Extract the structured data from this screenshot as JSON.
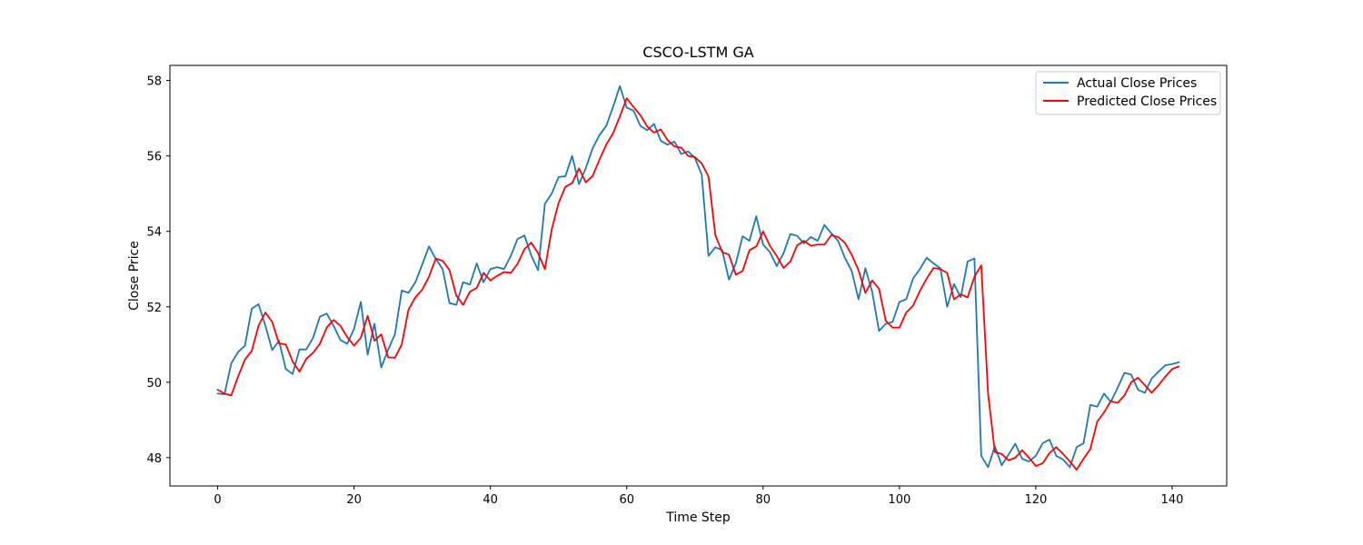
{
  "chart_data": {
    "type": "line",
    "title": "CSCO-LSTM GA",
    "xlabel": "Time Step",
    "ylabel": "Close Price",
    "xlim": [
      -7,
      148
    ],
    "ylim": [
      47.25,
      58.4
    ],
    "xticks": [
      0,
      20,
      40,
      60,
      80,
      100,
      120,
      140
    ],
    "yticks": [
      48,
      50,
      52,
      54,
      56,
      58
    ],
    "grid": false,
    "legend_position": "top-right",
    "series": [
      {
        "name": "Actual Close Prices",
        "color": "#1f77b4",
        "values": [
          49.7,
          49.68,
          50.5,
          50.8,
          50.97,
          51.95,
          52.07,
          51.5,
          50.85,
          51.1,
          50.35,
          50.22,
          50.87,
          50.87,
          51.18,
          51.74,
          51.82,
          51.5,
          51.12,
          51.02,
          51.41,
          52.13,
          50.73,
          51.55,
          50.39,
          50.86,
          51.27,
          52.43,
          52.37,
          52.65,
          53.12,
          53.6,
          53.27,
          53.0,
          52.1,
          52.05,
          52.65,
          52.59,
          53.15,
          52.65,
          53.0,
          53.05,
          53.0,
          53.35,
          53.8,
          53.89,
          53.36,
          52.97,
          54.73,
          55.0,
          55.44,
          55.46,
          56.0,
          55.25,
          55.68,
          56.2,
          56.55,
          56.8,
          57.3,
          57.85,
          57.28,
          57.2,
          56.8,
          56.68,
          56.85,
          56.4,
          56.3,
          56.38,
          56.05,
          56.12,
          55.95,
          55.5,
          53.35,
          53.58,
          53.5,
          52.72,
          53.15,
          53.87,
          53.75,
          54.4,
          53.65,
          53.45,
          53.08,
          53.42,
          53.93,
          53.88,
          53.68,
          53.85,
          53.75,
          54.17,
          53.95,
          53.75,
          53.3,
          52.95,
          52.2,
          53.02,
          52.4,
          51.36,
          51.55,
          51.6,
          52.13,
          52.2,
          52.75,
          53.0,
          53.3,
          53.15,
          53.02,
          52.0,
          52.6,
          52.25,
          53.2,
          53.28,
          48.05,
          47.75,
          48.3,
          47.8,
          48.08,
          48.37,
          47.97,
          47.9,
          48.05,
          48.38,
          48.48,
          48.05,
          47.95,
          47.75,
          48.28,
          48.38,
          49.4,
          49.35,
          49.7,
          49.48,
          49.85,
          50.25,
          50.2,
          49.8,
          49.72,
          50.1,
          50.28,
          50.45,
          50.48,
          50.53
        ]
      },
      {
        "name": "Predicted Close Prices",
        "color": "#ff0000",
        "values": [
          49.8,
          49.7,
          49.65,
          50.15,
          50.6,
          50.83,
          51.5,
          51.85,
          51.6,
          51.03,
          51.0,
          50.55,
          50.28,
          50.62,
          50.78,
          51.02,
          51.45,
          51.65,
          51.5,
          51.2,
          50.97,
          51.18,
          51.76,
          51.1,
          51.27,
          50.66,
          50.65,
          51.0,
          51.93,
          52.25,
          52.45,
          52.8,
          53.28,
          53.22,
          52.98,
          52.3,
          52.05,
          52.4,
          52.5,
          52.9,
          52.7,
          52.82,
          52.92,
          52.9,
          53.14,
          53.53,
          53.7,
          53.42,
          53.0,
          54.05,
          54.75,
          55.18,
          55.28,
          55.67,
          55.3,
          55.47,
          55.9,
          56.3,
          56.6,
          57.05,
          57.53,
          57.3,
          57.08,
          56.78,
          56.62,
          56.7,
          56.42,
          56.25,
          56.22,
          56.0,
          55.97,
          55.8,
          55.45,
          53.9,
          53.45,
          53.38,
          52.85,
          52.95,
          53.5,
          53.6,
          54.0,
          53.62,
          53.35,
          53.03,
          53.2,
          53.63,
          53.75,
          53.62,
          53.65,
          53.65,
          53.9,
          53.85,
          53.7,
          53.38,
          52.97,
          52.37,
          52.7,
          52.48,
          51.63,
          51.45,
          51.45,
          51.85,
          52.03,
          52.42,
          52.75,
          53.03,
          53.0,
          52.9,
          52.2,
          52.33,
          52.25,
          52.8,
          53.1,
          49.7,
          48.15,
          48.1,
          47.93,
          48.0,
          48.2,
          48.0,
          47.78,
          47.85,
          48.12,
          48.28,
          48.1,
          47.9,
          47.68,
          47.97,
          48.23,
          48.95,
          49.2,
          49.5,
          49.45,
          49.65,
          50.0,
          50.12,
          49.92,
          49.72,
          49.92,
          50.15,
          50.35,
          50.42
        ]
      }
    ]
  }
}
